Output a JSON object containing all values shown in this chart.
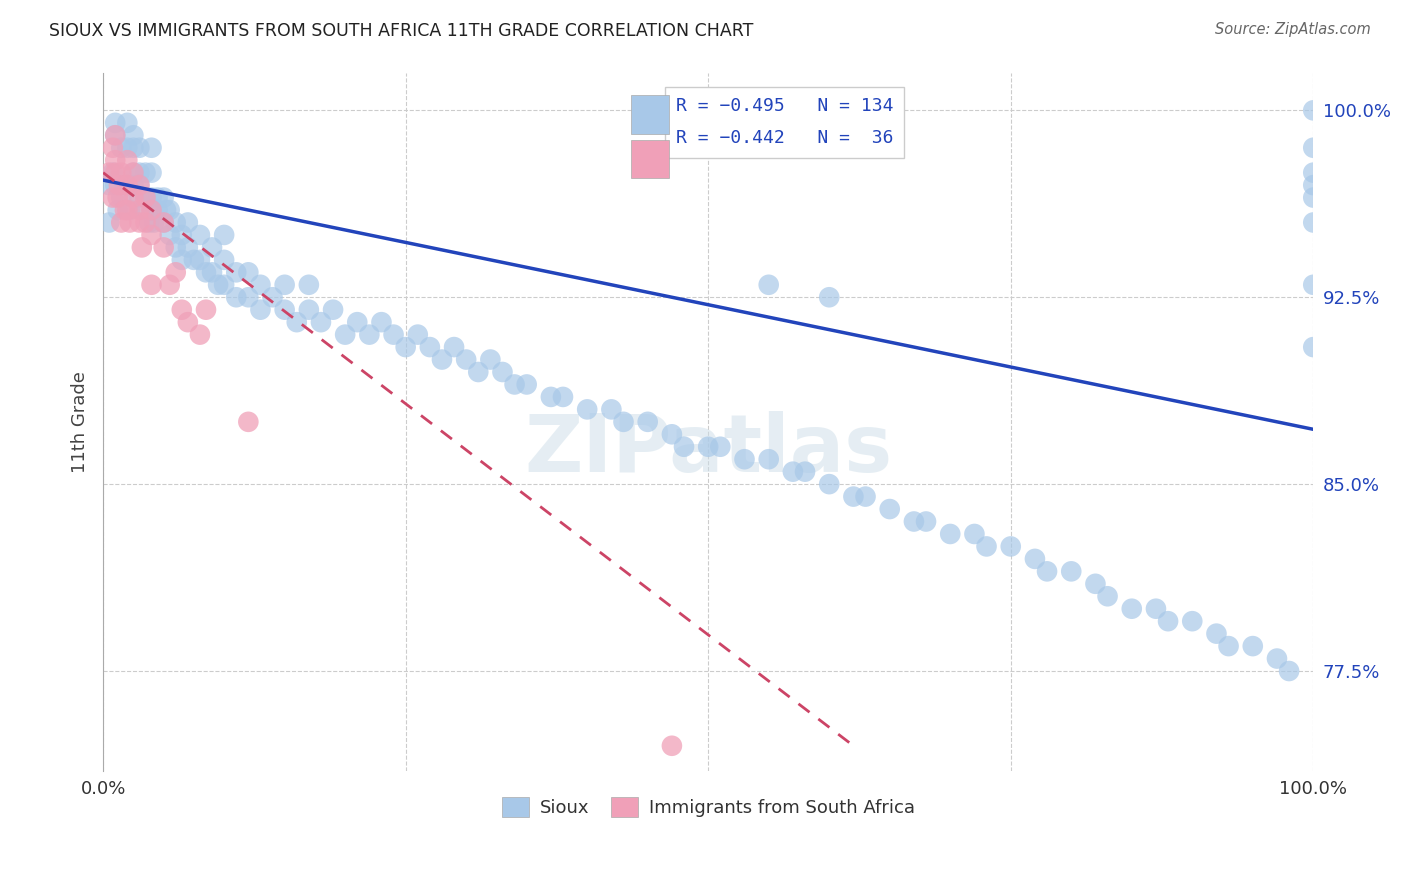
{
  "title": "SIOUX VS IMMIGRANTS FROM SOUTH AFRICA 11TH GRADE CORRELATION CHART",
  "source": "Source: ZipAtlas.com",
  "ylabel": "11th Grade",
  "xlim": [
    0.0,
    1.0
  ],
  "ylim": [
    0.735,
    1.015
  ],
  "blue_color": "#A8C8E8",
  "pink_color": "#F0A0B8",
  "line_blue": "#2244BB",
  "line_pink": "#CC4466",
  "watermark": "ZIPatlas",
  "blue_line_x0": 0.0,
  "blue_line_y0": 0.972,
  "blue_line_x1": 1.0,
  "blue_line_y1": 0.872,
  "pink_line_x0": 0.0,
  "pink_line_y0": 0.975,
  "pink_line_x1": 0.62,
  "pink_line_y1": 0.745,
  "blue_x": [
    0.005,
    0.008,
    0.01,
    0.01,
    0.01,
    0.012,
    0.015,
    0.015,
    0.018,
    0.02,
    0.02,
    0.02,
    0.022,
    0.025,
    0.025,
    0.025,
    0.025,
    0.03,
    0.03,
    0.03,
    0.03,
    0.032,
    0.035,
    0.035,
    0.038,
    0.04,
    0.04,
    0.04,
    0.04,
    0.042,
    0.045,
    0.045,
    0.05,
    0.05,
    0.052,
    0.055,
    0.055,
    0.06,
    0.06,
    0.065,
    0.065,
    0.07,
    0.07,
    0.075,
    0.08,
    0.08,
    0.085,
    0.09,
    0.09,
    0.095,
    0.1,
    0.1,
    0.1,
    0.11,
    0.11,
    0.12,
    0.12,
    0.13,
    0.13,
    0.14,
    0.15,
    0.15,
    0.16,
    0.17,
    0.17,
    0.18,
    0.19,
    0.2,
    0.21,
    0.22,
    0.23,
    0.24,
    0.25,
    0.26,
    0.27,
    0.28,
    0.29,
    0.3,
    0.31,
    0.32,
    0.33,
    0.34,
    0.35,
    0.37,
    0.38,
    0.4,
    0.42,
    0.43,
    0.45,
    0.47,
    0.48,
    0.5,
    0.51,
    0.53,
    0.55,
    0.57,
    0.58,
    0.6,
    0.62,
    0.63,
    0.65,
    0.67,
    0.68,
    0.7,
    0.72,
    0.73,
    0.75,
    0.77,
    0.78,
    0.8,
    0.82,
    0.83,
    0.85,
    0.87,
    0.88,
    0.9,
    0.92,
    0.93,
    0.95,
    0.97,
    0.98,
    1.0,
    1.0,
    1.0,
    1.0,
    1.0,
    1.0,
    1.0,
    1.0,
    0.005,
    0.55,
    0.6
  ],
  "blue_y": [
    0.955,
    0.975,
    0.97,
    0.99,
    0.995,
    0.96,
    0.965,
    0.985,
    0.97,
    0.97,
    0.985,
    0.995,
    0.96,
    0.97,
    0.975,
    0.985,
    0.99,
    0.965,
    0.97,
    0.975,
    0.985,
    0.96,
    0.965,
    0.975,
    0.955,
    0.96,
    0.965,
    0.975,
    0.985,
    0.955,
    0.96,
    0.965,
    0.955,
    0.965,
    0.96,
    0.95,
    0.96,
    0.945,
    0.955,
    0.94,
    0.95,
    0.945,
    0.955,
    0.94,
    0.94,
    0.95,
    0.935,
    0.935,
    0.945,
    0.93,
    0.93,
    0.94,
    0.95,
    0.925,
    0.935,
    0.925,
    0.935,
    0.92,
    0.93,
    0.925,
    0.92,
    0.93,
    0.915,
    0.92,
    0.93,
    0.915,
    0.92,
    0.91,
    0.915,
    0.91,
    0.915,
    0.91,
    0.905,
    0.91,
    0.905,
    0.9,
    0.905,
    0.9,
    0.895,
    0.9,
    0.895,
    0.89,
    0.89,
    0.885,
    0.885,
    0.88,
    0.88,
    0.875,
    0.875,
    0.87,
    0.865,
    0.865,
    0.865,
    0.86,
    0.86,
    0.855,
    0.855,
    0.85,
    0.845,
    0.845,
    0.84,
    0.835,
    0.835,
    0.83,
    0.83,
    0.825,
    0.825,
    0.82,
    0.815,
    0.815,
    0.81,
    0.805,
    0.8,
    0.8,
    0.795,
    0.795,
    0.79,
    0.785,
    0.785,
    0.78,
    0.775,
    1.0,
    0.985,
    0.975,
    0.97,
    0.965,
    0.955,
    0.93,
    0.905,
    0.97,
    0.93,
    0.925
  ],
  "pink_x": [
    0.005,
    0.008,
    0.008,
    0.01,
    0.01,
    0.01,
    0.012,
    0.013,
    0.015,
    0.015,
    0.018,
    0.02,
    0.02,
    0.02,
    0.022,
    0.025,
    0.025,
    0.03,
    0.03,
    0.03,
    0.032,
    0.035,
    0.035,
    0.04,
    0.04,
    0.04,
    0.05,
    0.05,
    0.055,
    0.06,
    0.065,
    0.07,
    0.08,
    0.085,
    0.12,
    0.47
  ],
  "pink_y": [
    0.975,
    0.985,
    0.965,
    0.975,
    0.99,
    0.98,
    0.965,
    0.97,
    0.975,
    0.955,
    0.96,
    0.97,
    0.96,
    0.98,
    0.955,
    0.965,
    0.975,
    0.96,
    0.97,
    0.955,
    0.945,
    0.955,
    0.965,
    0.95,
    0.96,
    0.93,
    0.945,
    0.955,
    0.93,
    0.935,
    0.92,
    0.915,
    0.91,
    0.92,
    0.875,
    0.745
  ]
}
